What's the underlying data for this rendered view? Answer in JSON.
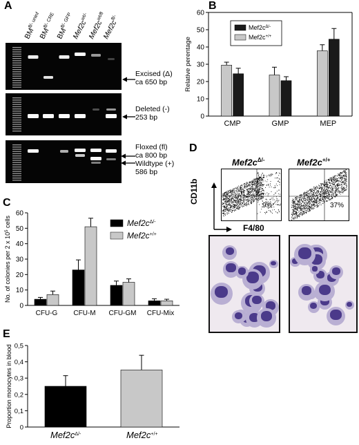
{
  "panels": {
    "A": {
      "label": "A",
      "lanes": [
        {
          "main": "BM",
          "sup": "fl/- uninf",
          "italic": false
        },
        {
          "main": "BM",
          "sup": "fl/- CRE",
          "italic": false
        },
        {
          "main": "BM",
          "sup": "fl/- GFP",
          "italic": false
        },
        {
          "main": "Mef2c",
          "sup": "wt/-",
          "italic": true
        },
        {
          "main": "Mef2c",
          "sup": "wt/fl",
          "italic": true
        },
        {
          "main": "Mef2c",
          "sup": "fl/-",
          "italic": true
        }
      ],
      "gel1": {
        "line1": "Excised (Δ)",
        "line2": "ca 650 bp"
      },
      "gel2": {
        "line1": "Deleted (-)",
        "line2": "253 bp"
      },
      "gel3": {
        "line1": "Floxed (fl)",
        "line2": "ca 800 bp",
        "line3": "Wildtype (+)",
        "line4": "586 bp"
      }
    },
    "B": {
      "label": "B"
    },
    "C": {
      "label": "C"
    },
    "D": {
      "label": "D",
      "left_title": "Mef2c",
      "left_sup": "Δ/-",
      "right_title": "Mef2c",
      "right_sup": "+/+",
      "left_pct": "9%",
      "right_pct": "37%",
      "y_axis": "CD11b",
      "x_axis": "F4/80"
    },
    "E": {
      "label": "E"
    }
  },
  "chart_data": [
    {
      "panel": "B",
      "type": "bar",
      "categories": [
        "CMP",
        "GMP",
        "MEP"
      ],
      "ylabel": "Relative perentage",
      "ylim": [
        0,
        60
      ],
      "yticks": [
        0,
        10,
        20,
        30,
        40,
        50,
        60
      ],
      "legend_position": "top-left",
      "series": [
        {
          "name": "Mef2c",
          "sup": "Δ/-",
          "color": "#1a1a1a",
          "values": [
            24.5,
            20.5,
            44.5
          ],
          "errors": [
            3.2,
            2.3,
            6.2
          ]
        },
        {
          "name": "Mef2c",
          "sup": "+/+",
          "color": "#c8c8c8",
          "values": [
            29.5,
            23.8,
            37.8
          ],
          "errors": [
            1.7,
            4.5,
            3.5
          ]
        }
      ]
    },
    {
      "panel": "C",
      "type": "bar",
      "categories": [
        "CFU-G",
        "CFU-M",
        "CFU-GM",
        "CFU-Mix"
      ],
      "ylabel": "No. of colonies per 2 x 10",
      "ylabel_sup": "5",
      "ylabel_end": " cells",
      "ylim": [
        0,
        60
      ],
      "yticks": [
        0,
        10,
        20,
        30,
        40,
        50,
        60
      ],
      "legend_position": "top-right",
      "series": [
        {
          "name": "Mef2c",
          "sup": "Δ/-",
          "color": "#000000",
          "values": [
            4,
            23,
            13,
            3
          ],
          "errors": [
            1.2,
            6.5,
            2.8,
            1.3
          ]
        },
        {
          "name": "Mef2c",
          "sup": "+/+",
          "color": "#c8c8c8",
          "values": [
            7,
            51,
            15,
            3
          ],
          "errors": [
            2.3,
            5.5,
            2.2,
            1.0
          ]
        }
      ]
    },
    {
      "panel": "E",
      "type": "bar",
      "categories": [
        "Mef2c",
        "Mef2c"
      ],
      "category_sups": [
        "Δ/-",
        "+/+"
      ],
      "ylabel": "Proportion monocytes in blood",
      "ylim": [
        0,
        0.5
      ],
      "yticks": [
        "0",
        "0,1",
        "0,2",
        "0,3",
        "0,4",
        "0,5"
      ],
      "series": [
        {
          "name": "",
          "colors": [
            "#000000",
            "#c8c8c8"
          ],
          "values": [
            0.25,
            0.35
          ],
          "errors": [
            0.065,
            0.09
          ]
        }
      ]
    }
  ]
}
